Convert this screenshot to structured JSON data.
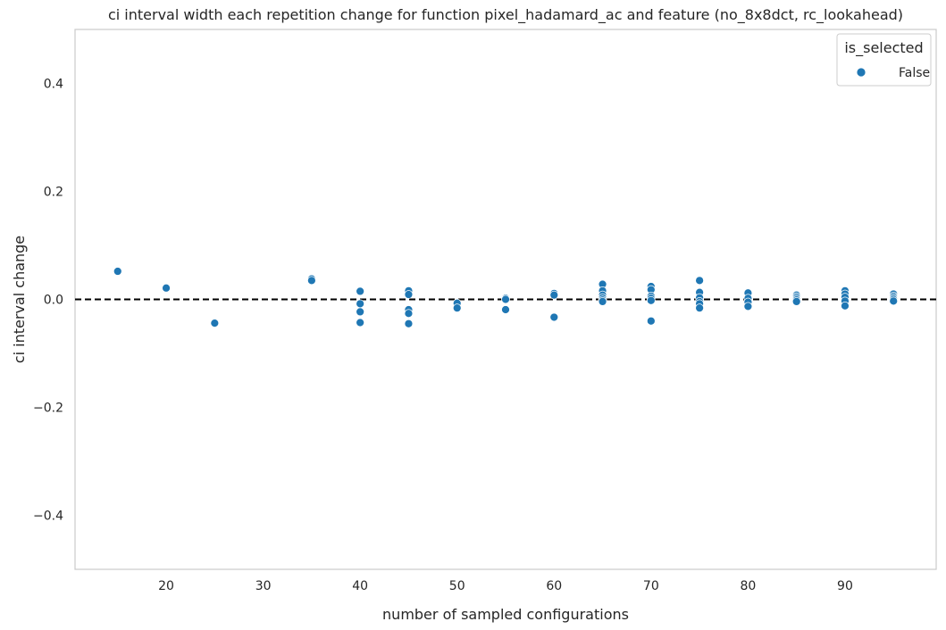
{
  "chart_data": {
    "type": "scatter",
    "title": "ci interval width each repetition change for function pixel_hadamard_ac and feature (no_8x8dct, rc_lookahead)",
    "xlabel": "number of sampled configurations",
    "ylabel": "ci interval change",
    "xlim": [
      10.6,
      99.4
    ],
    "ylim": [
      -0.5,
      0.5
    ],
    "xticks": [
      20,
      30,
      40,
      50,
      60,
      70,
      80,
      90
    ],
    "yticks": [
      -0.4,
      -0.2,
      0.0,
      0.2,
      0.4
    ],
    "ytick_labels": [
      "−0.4",
      "−0.2",
      "0.0",
      "0.2",
      "0.4"
    ],
    "grid": false,
    "reference_line": {
      "y": 0.0,
      "style": "dashed",
      "color": "#000000"
    },
    "legend": {
      "title": "is_selected",
      "placement": "top-right",
      "entries": [
        "False"
      ]
    },
    "series": [
      {
        "name": "False",
        "color": "#1f77b4",
        "points": [
          [
            15,
            0.052
          ],
          [
            20,
            0.021
          ],
          [
            25,
            -0.044
          ],
          [
            35,
            0.038
          ],
          [
            35,
            0.035
          ],
          [
            40,
            0.015
          ],
          [
            40,
            -0.008
          ],
          [
            40,
            -0.023
          ],
          [
            40,
            -0.043
          ],
          [
            45,
            0.016
          ],
          [
            45,
            0.009
          ],
          [
            45,
            -0.019
          ],
          [
            45,
            -0.026
          ],
          [
            45,
            -0.045
          ],
          [
            50,
            -0.007
          ],
          [
            50,
            -0.016
          ],
          [
            55,
            0.002
          ],
          [
            55,
            0.0
          ],
          [
            55,
            -0.019
          ],
          [
            60,
            0.011
          ],
          [
            60,
            0.008
          ],
          [
            60,
            -0.033
          ],
          [
            65,
            0.028
          ],
          [
            65,
            0.016
          ],
          [
            65,
            0.008
          ],
          [
            65,
            0.003
          ],
          [
            65,
            -0.001
          ],
          [
            65,
            -0.004
          ],
          [
            70,
            0.024
          ],
          [
            70,
            0.018
          ],
          [
            70,
            0.006
          ],
          [
            70,
            0.002
          ],
          [
            70,
            -0.002
          ],
          [
            70,
            -0.04
          ],
          [
            75,
            0.035
          ],
          [
            75,
            0.013
          ],
          [
            75,
            0.003
          ],
          [
            75,
            -0.004
          ],
          [
            75,
            -0.008
          ],
          [
            75,
            -0.016
          ],
          [
            80,
            0.012
          ],
          [
            80,
            0.002
          ],
          [
            80,
            -0.005
          ],
          [
            80,
            -0.013
          ],
          [
            85,
            0.008
          ],
          [
            85,
            0.005
          ],
          [
            85,
            0.002
          ],
          [
            85,
            -0.001
          ],
          [
            85,
            -0.004
          ],
          [
            90,
            0.016
          ],
          [
            90,
            0.01
          ],
          [
            90,
            0.004
          ],
          [
            90,
            -0.003
          ],
          [
            90,
            -0.012
          ],
          [
            95,
            0.01
          ],
          [
            95,
            0.006
          ],
          [
            95,
            0.003
          ],
          [
            95,
            0.0
          ],
          [
            95,
            -0.003
          ]
        ]
      }
    ]
  }
}
